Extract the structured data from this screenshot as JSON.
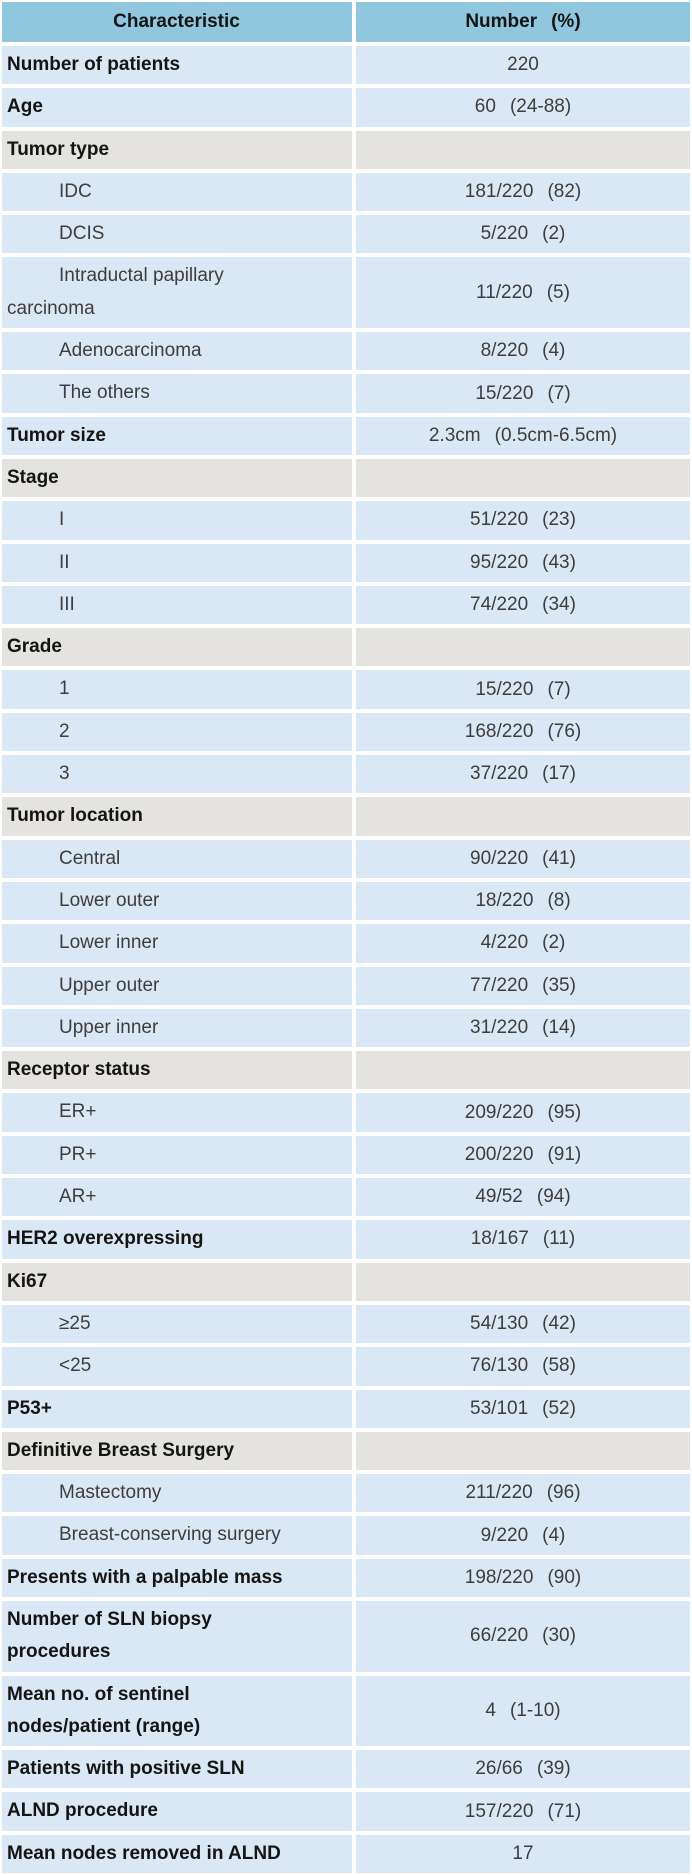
{
  "table": {
    "header": {
      "col1": "Characteristic",
      "col2_label": "Number",
      "col2_unit": "(%)"
    },
    "colors": {
      "header_blue": "#90c6de",
      "row_blue": "#dae8f5",
      "section_gray": "#e5e3e0",
      "bold_text": "#141414",
      "body_text": "#3d3d3d"
    },
    "rows": [
      {
        "kind": "item",
        "bold": true,
        "sub": false,
        "label": "Number of patients",
        "num": "220",
        "pct": ""
      },
      {
        "kind": "item",
        "bold": true,
        "sub": false,
        "label": "Age",
        "num": "60",
        "pct": "(24-88)"
      },
      {
        "kind": "section",
        "bold": true,
        "sub": false,
        "label": "Tumor type",
        "num": "",
        "pct": ""
      },
      {
        "kind": "item",
        "bold": false,
        "sub": true,
        "label": "IDC",
        "num": "181/220",
        "pct": "(82)"
      },
      {
        "kind": "item",
        "bold": false,
        "sub": true,
        "label": "DCIS",
        "num": "5/220",
        "pct": "(2)"
      },
      {
        "kind": "item",
        "bold": false,
        "sub": true,
        "label": "Intraductal papillary\ncarcinoma",
        "num": "11/220",
        "pct": "(5)"
      },
      {
        "kind": "item",
        "bold": false,
        "sub": true,
        "label": "Adenocarcinoma",
        "num": "8/220",
        "pct": "(4)"
      },
      {
        "kind": "item",
        "bold": false,
        "sub": true,
        "label": "The others",
        "num": "15/220",
        "pct": "(7)"
      },
      {
        "kind": "item",
        "bold": true,
        "sub": false,
        "label": "Tumor size",
        "num": "2.3cm",
        "pct": "(0.5cm-6.5cm)"
      },
      {
        "kind": "section",
        "bold": true,
        "sub": false,
        "label": "Stage",
        "num": "",
        "pct": ""
      },
      {
        "kind": "item",
        "bold": false,
        "sub": true,
        "label": "I",
        "num": "51/220",
        "pct": "(23)"
      },
      {
        "kind": "item",
        "bold": false,
        "sub": true,
        "label": "II",
        "num": "95/220",
        "pct": "(43)"
      },
      {
        "kind": "item",
        "bold": false,
        "sub": true,
        "label": "III",
        "num": "74/220",
        "pct": "(34)"
      },
      {
        "kind": "section",
        "bold": true,
        "sub": false,
        "label": "Grade",
        "num": "",
        "pct": ""
      },
      {
        "kind": "item",
        "bold": false,
        "sub": true,
        "label": "1",
        "num": "15/220",
        "pct": "(7)"
      },
      {
        "kind": "item",
        "bold": false,
        "sub": true,
        "label": "2",
        "num": "168/220",
        "pct": "(76)"
      },
      {
        "kind": "item",
        "bold": false,
        "sub": true,
        "label": "3",
        "num": "37/220",
        "pct": "(17)"
      },
      {
        "kind": "section",
        "bold": true,
        "sub": false,
        "label": "Tumor location",
        "num": "",
        "pct": ""
      },
      {
        "kind": "item",
        "bold": false,
        "sub": true,
        "label": "Central",
        "num": "90/220",
        "pct": "(41)"
      },
      {
        "kind": "item",
        "bold": false,
        "sub": true,
        "label": "Lower outer",
        "num": "18/220",
        "pct": "(8)"
      },
      {
        "kind": "item",
        "bold": false,
        "sub": true,
        "label": "Lower inner",
        "num": "4/220",
        "pct": "(2)"
      },
      {
        "kind": "item",
        "bold": false,
        "sub": true,
        "label": "Upper outer",
        "num": "77/220",
        "pct": "(35)"
      },
      {
        "kind": "item",
        "bold": false,
        "sub": true,
        "label": "Upper inner",
        "num": "31/220",
        "pct": "(14)"
      },
      {
        "kind": "section",
        "bold": true,
        "sub": false,
        "label": "Receptor status",
        "num": "",
        "pct": ""
      },
      {
        "kind": "item",
        "bold": false,
        "sub": true,
        "label": "ER+",
        "num": "209/220",
        "pct": "(95)"
      },
      {
        "kind": "item",
        "bold": false,
        "sub": true,
        "label": "PR+",
        "num": "200/220",
        "pct": "(91)"
      },
      {
        "kind": "item",
        "bold": false,
        "sub": true,
        "label": "AR+",
        "num": "49/52",
        "pct": "(94)"
      },
      {
        "kind": "item",
        "bold": true,
        "sub": false,
        "label": "HER2 overexpressing",
        "num": "18/167",
        "pct": "(11)"
      },
      {
        "kind": "section",
        "bold": true,
        "sub": false,
        "label": "Ki67",
        "num": "",
        "pct": ""
      },
      {
        "kind": "item",
        "bold": false,
        "sub": true,
        "label": "≥25",
        "num": "54/130",
        "pct": "(42)"
      },
      {
        "kind": "item",
        "bold": false,
        "sub": true,
        "label": "<25",
        "num": "76/130",
        "pct": "(58)"
      },
      {
        "kind": "item",
        "bold": true,
        "sub": false,
        "label": "P53+",
        "num": "53/101",
        "pct": "(52)"
      },
      {
        "kind": "section",
        "bold": true,
        "sub": false,
        "label": "Definitive Breast Surgery",
        "num": "",
        "pct": ""
      },
      {
        "kind": "item",
        "bold": false,
        "sub": true,
        "label": "Mastectomy",
        "num": "211/220",
        "pct": "(96)"
      },
      {
        "kind": "item",
        "bold": false,
        "sub": true,
        "label": "Breast-conserving surgery",
        "num": "9/220",
        "pct": "(4)"
      },
      {
        "kind": "item",
        "bold": true,
        "sub": false,
        "label": "Presents with a palpable mass",
        "num": "198/220",
        "pct": "(90)"
      },
      {
        "kind": "item",
        "bold": true,
        "sub": false,
        "label": "Number of SLN biopsy\nprocedures",
        "num": "66/220",
        "pct": "(30)"
      },
      {
        "kind": "item",
        "bold": true,
        "sub": false,
        "label": "Mean no. of sentinel\nnodes/patient (range)",
        "num": "4",
        "pct": "(1-10)"
      },
      {
        "kind": "item",
        "bold": true,
        "sub": false,
        "label": "Patients with positive SLN",
        "num": "26/66",
        "pct": "(39)"
      },
      {
        "kind": "item",
        "bold": true,
        "sub": false,
        "label": "ALND procedure",
        "num": "157/220",
        "pct": "(71)"
      },
      {
        "kind": "item",
        "bold": true,
        "sub": false,
        "label": "Mean nodes removed in ALND",
        "num": "17",
        "pct": ""
      }
    ]
  }
}
